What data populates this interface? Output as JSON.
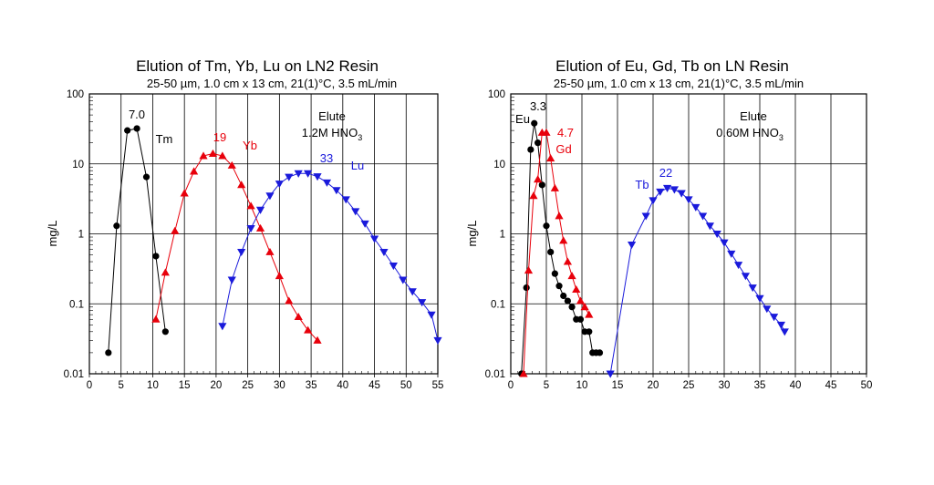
{
  "chart_data": [
    {
      "type": "scatter",
      "title": "Elution of Tm, Yb, Lu on LN2 Resin",
      "subtitle": "25-50 µm, 1.0 cm x 13 cm, 21(1)°C, 3.5 mL/min",
      "xlabel": "",
      "ylabel": "mg/L",
      "xlim": [
        0,
        55
      ],
      "ylim": [
        0.01,
        100
      ],
      "yscale": "log",
      "grid": true,
      "xticks": [
        "0",
        "5",
        "10",
        "15",
        "20",
        "25",
        "30",
        "35",
        "40",
        "45",
        "50",
        "55"
      ],
      "yticks": [
        "0.01",
        "0.1",
        "1",
        "10",
        "100"
      ],
      "annotations": {
        "eluent_line1": "Elute",
        "eluent_line2_prefix": "1.2M HNO",
        "eluent_line2_sub": "3"
      },
      "series": [
        {
          "name": "Tm",
          "peak_label": "7.0",
          "color": "#000000",
          "marker": "circle",
          "x": [
            3,
            4.3,
            6,
            7.5,
            9,
            10.5,
            12
          ],
          "y": [
            0.02,
            1.3,
            30,
            32,
            6.5,
            0.48,
            0.04
          ]
        },
        {
          "name": "Yb",
          "peak_label": "19",
          "color": "#e8000b",
          "marker": "triangle-up",
          "x": [
            10.5,
            12,
            13.5,
            15,
            16.5,
            18,
            19.5,
            21,
            22.5,
            24,
            25.5,
            27,
            28.5,
            30,
            31.5,
            33,
            34.5,
            36
          ],
          "y": [
            0.06,
            0.28,
            1.1,
            3.8,
            7.8,
            13,
            14,
            13,
            9.5,
            5,
            2.5,
            1.2,
            0.55,
            0.25,
            0.11,
            0.065,
            0.042,
            0.03
          ]
        },
        {
          "name": "Lu",
          "peak_label": "33",
          "color": "#1a1adb",
          "marker": "triangle-down",
          "x": [
            21,
            22.5,
            24,
            25.5,
            27,
            28.5,
            30,
            31.5,
            33,
            34.5,
            36,
            37.5,
            39,
            40.5,
            42,
            43.5,
            45,
            46.5,
            48,
            49.5,
            51,
            52.5,
            54,
            55
          ],
          "y": [
            0.048,
            0.22,
            0.55,
            1.2,
            2.2,
            3.5,
            5.2,
            6.5,
            7.3,
            7.3,
            6.6,
            5.4,
            4.2,
            3.1,
            2.1,
            1.4,
            0.85,
            0.55,
            0.35,
            0.22,
            0.15,
            0.105,
            0.07,
            0.03
          ]
        }
      ]
    },
    {
      "type": "scatter",
      "title": "Elution of Eu, Gd, Tb on LN Resin",
      "subtitle": "25-50 µm, 1.0 cm x 13 cm, 21(1)°C, 3.5 mL/min",
      "xlabel": "",
      "ylabel": "mg/L",
      "xlim": [
        0,
        50
      ],
      "ylim": [
        0.01,
        100
      ],
      "yscale": "log",
      "grid": true,
      "xticks": [
        "0",
        "5",
        "10",
        "15",
        "20",
        "25",
        "30",
        "35",
        "40",
        "45",
        "50"
      ],
      "yticks": [
        "0.01",
        "0.1",
        "1",
        "10",
        "100"
      ],
      "annotations": {
        "eluent_line1": "Elute",
        "eluent_line2_prefix": "0.60M HNO",
        "eluent_line2_sub": "3"
      },
      "series": [
        {
          "name": "Eu",
          "peak_label": "3.3",
          "color": "#000000",
          "marker": "circle",
          "x": [
            1.5,
            2.2,
            2.8,
            3.3,
            3.8,
            4.4,
            5,
            5.6,
            6.2,
            6.8,
            7.4,
            8,
            8.6,
            9.2,
            9.8,
            10.4,
            11,
            11.5,
            12,
            12.5
          ],
          "y": [
            0.01,
            0.17,
            16,
            38,
            20,
            5,
            1.3,
            0.55,
            0.27,
            0.18,
            0.13,
            0.11,
            0.09,
            0.06,
            0.06,
            0.04,
            0.04,
            0.02,
            0.02,
            0.02
          ]
        },
        {
          "name": "Gd",
          "peak_label": "4.7",
          "color": "#e8000b",
          "marker": "triangle-up",
          "x": [
            1.8,
            2.5,
            3.2,
            3.8,
            4.4,
            5,
            5.6,
            6.2,
            6.8,
            7.4,
            8,
            8.6,
            9.2,
            9.8,
            10.4,
            11
          ],
          "y": [
            0.01,
            0.3,
            3.5,
            6,
            28,
            28,
            12,
            4.5,
            1.8,
            0.8,
            0.4,
            0.25,
            0.16,
            0.11,
            0.09,
            0.07
          ]
        },
        {
          "name": "Tb",
          "peak_label": "22",
          "color": "#1a1adb",
          "marker": "triangle-down",
          "x": [
            14,
            17,
            19,
            20,
            21,
            22,
            23,
            24,
            25,
            26,
            27,
            28,
            29,
            30,
            31,
            32,
            33,
            34,
            35,
            36,
            37,
            38,
            38.5
          ],
          "y": [
            0.01,
            0.7,
            1.8,
            3,
            4,
            4.5,
            4.3,
            3.8,
            3.1,
            2.4,
            1.8,
            1.3,
            1,
            0.75,
            0.52,
            0.36,
            0.25,
            0.17,
            0.12,
            0.085,
            0.065,
            0.05,
            0.04
          ]
        }
      ]
    }
  ]
}
